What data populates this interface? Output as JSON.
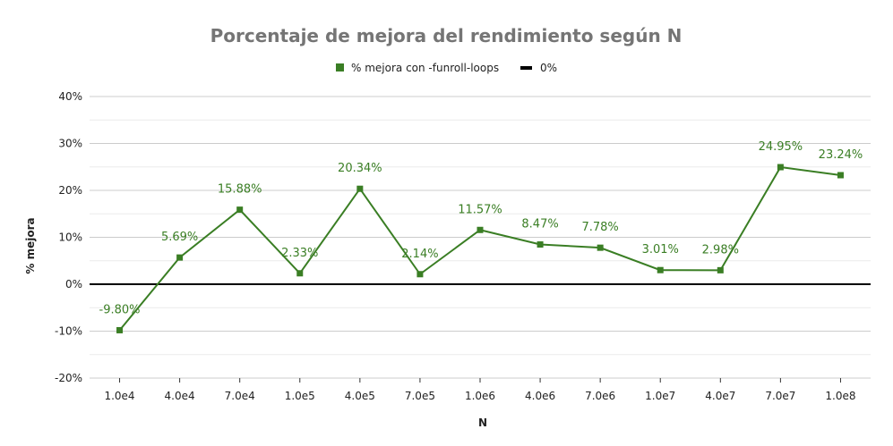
{
  "chart_data": {
    "type": "line",
    "title": "Porcentaje de mejora del rendimiento según N",
    "xlabel": "N",
    "ylabel": "% mejora",
    "categories": [
      "1.0e4",
      "4.0e4",
      "7.0e4",
      "1.0e5",
      "4.0e5",
      "7.0e5",
      "1.0e6",
      "4.0e6",
      "7.0e6",
      "1.0e7",
      "4.0e7",
      "7.0e7",
      "1.0e8"
    ],
    "series": [
      {
        "name": "% mejora con -funroll-loops",
        "color": "#3a7e24",
        "values": [
          -9.8,
          5.69,
          15.88,
          2.33,
          20.34,
          2.14,
          11.57,
          8.47,
          7.78,
          3.01,
          2.98,
          24.95,
          23.24
        ],
        "labels": [
          "-9.80%",
          "5.69%",
          "15.88%",
          "2.33%",
          "20.34%",
          "2.14%",
          "11.57%",
          "8.47%",
          "7.78%",
          "3.01%",
          "2.98%",
          "24.95%",
          "23.24%"
        ]
      }
    ],
    "reference_line": {
      "name": "0%",
      "value": 0,
      "color": "#000000"
    },
    "ylim": [
      -20,
      40
    ],
    "yticks": [
      -20,
      -10,
      0,
      10,
      20,
      30,
      40
    ],
    "ytick_labels": [
      "-20%",
      "-10%",
      "0%",
      "10%",
      "20%",
      "30%",
      "40%"
    ],
    "grid": true,
    "legend_position": "top"
  }
}
